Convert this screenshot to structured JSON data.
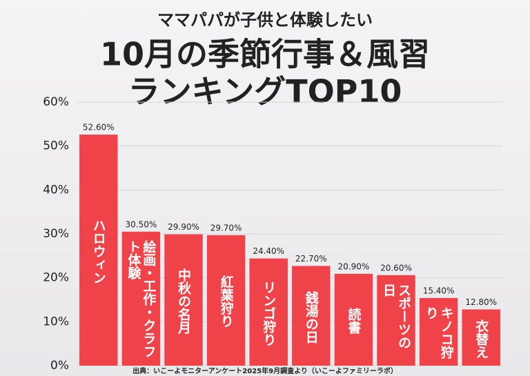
{
  "chart_data": {
    "type": "bar",
    "title": "ママパパが子供と体験したい",
    "subtitle": "10月の季節行事＆風習",
    "subtitle2": "ランキングTOP10",
    "source": "出典：いこーよモニターアンケート2025年9月調査より（いこーよファミリーラボ）",
    "categories": [
      "ハロウィン",
      "絵画・工作・クラフト体験",
      "中秋の名月",
      "紅葉狩り",
      "リンゴ狩り",
      "銭湯の日",
      "読書",
      "スポーツの日",
      "キノコ狩り",
      "衣替え"
    ],
    "values": [
      52.6,
      30.5,
      29.9,
      29.7,
      24.4,
      22.7,
      20.9,
      20.6,
      15.4,
      12.8
    ],
    "value_labels": [
      "52.60%",
      "30.50%",
      "29.90%",
      "29.70%",
      "24.40%",
      "22.70%",
      "20.90%",
      "20.60%",
      "15.40%",
      "12.80%"
    ],
    "color": "#ef4249",
    "ylim": [
      0,
      60
    ],
    "yticks": [
      {
        "value": 0,
        "label": "0%"
      },
      {
        "value": 10,
        "label": "10%"
      },
      {
        "value": 20,
        "label": "20%"
      },
      {
        "value": 30,
        "label": "30%"
      },
      {
        "value": 40,
        "label": "40%"
      },
      {
        "value": 50,
        "label": "50%"
      },
      {
        "value": 60,
        "label": "60%"
      }
    ],
    "grid": true
  }
}
